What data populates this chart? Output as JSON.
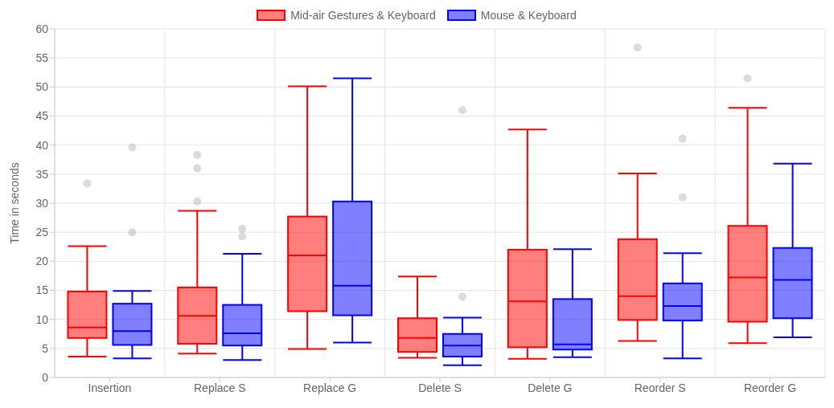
{
  "chart_data": {
    "type": "box",
    "categories": [
      "Insertion",
      "Replace S",
      "Replace G",
      "Delete S",
      "Delete G",
      "Reorder S",
      "Reorder G"
    ],
    "ylabel": "Time in seconds",
    "ylim": [
      0,
      60
    ],
    "yticks": [
      0,
      5,
      10,
      15,
      20,
      25,
      30,
      35,
      40,
      45,
      50,
      55,
      60
    ],
    "grid": true,
    "legend": "top",
    "series": [
      {
        "name": "Mid-air Gestures & Keyboard",
        "color": "#ff0000",
        "boxes": [
          {
            "low": 3.6,
            "q1": 6.8,
            "median": 8.6,
            "q3": 14.8,
            "high": 22.6,
            "outliers": [
              33.4
            ]
          },
          {
            "low": 4.1,
            "q1": 5.8,
            "median": 10.6,
            "q3": 15.5,
            "high": 28.7,
            "outliers": [
              30.3,
              36.0,
              38.3
            ]
          },
          {
            "low": 4.9,
            "q1": 11.4,
            "median": 21.0,
            "q3": 27.7,
            "high": 50.1
          },
          {
            "low": 3.4,
            "q1": 4.4,
            "median": 6.8,
            "q3": 10.2,
            "high": 17.4
          },
          {
            "low": 3.2,
            "q1": 5.2,
            "median": 13.1,
            "q3": 22.0,
            "high": 42.7
          },
          {
            "low": 6.3,
            "q1": 9.9,
            "median": 14.0,
            "q3": 23.8,
            "high": 35.1,
            "outliers": [
              56.8
            ]
          },
          {
            "low": 5.9,
            "q1": 9.6,
            "median": 17.2,
            "q3": 26.1,
            "high": 46.4,
            "outliers": [
              51.5
            ]
          }
        ]
      },
      {
        "name": "Mouse & Keyboard",
        "color": "#0000ff",
        "boxes": [
          {
            "low": 3.3,
            "q1": 5.6,
            "median": 8.0,
            "q3": 12.7,
            "high": 14.9,
            "outliers": [
              25.0,
              39.6
            ]
          },
          {
            "low": 3.0,
            "q1": 5.5,
            "median": 7.6,
            "q3": 12.5,
            "high": 21.3,
            "outliers": [
              24.3,
              25.6
            ]
          },
          {
            "low": 6.0,
            "q1": 10.7,
            "median": 15.8,
            "q3": 30.3,
            "high": 51.5
          },
          {
            "low": 2.1,
            "q1": 3.6,
            "median": 5.5,
            "q3": 7.5,
            "high": 10.3,
            "outliers": [
              13.9,
              46.0
            ]
          },
          {
            "low": 3.5,
            "q1": 4.8,
            "median": 5.7,
            "q3": 13.5,
            "high": 22.1
          },
          {
            "low": 3.3,
            "q1": 9.8,
            "median": 12.3,
            "q3": 16.2,
            "high": 21.4,
            "outliers": [
              31.0,
              41.1
            ]
          },
          {
            "low": 6.9,
            "q1": 10.2,
            "median": 16.8,
            "q3": 22.3,
            "high": 36.8
          }
        ]
      }
    ]
  }
}
